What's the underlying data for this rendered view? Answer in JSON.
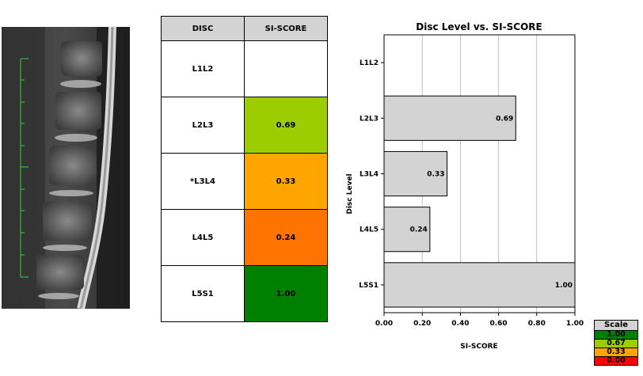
{
  "table": {
    "headers": [
      "DISC",
      "SI-SCORE"
    ],
    "rows": [
      {
        "disc": "L1L2",
        "score": "",
        "color": "#ffffff"
      },
      {
        "disc": "L2L3",
        "score": "0.69",
        "color": "#9ccd00"
      },
      {
        "disc": "*L3L4",
        "score": "0.33",
        "color": "#ffa500"
      },
      {
        "disc": "L4L5",
        "score": "0.24",
        "color": "#ff7300"
      },
      {
        "disc": "L5S1",
        "score": "1.00",
        "color": "#007f00"
      }
    ]
  },
  "chart_data": {
    "type": "bar",
    "orientation": "horizontal",
    "title": "Disc Level vs. SI-SCORE",
    "xlabel": "SI-SCORE",
    "ylabel": "Disc Level",
    "categories": [
      "L1L2",
      "L2L3",
      "L3L4",
      "L4L5",
      "L5S1"
    ],
    "values": [
      null,
      0.69,
      0.33,
      0.24,
      1.0
    ],
    "value_labels": [
      "",
      "0.69",
      "0.33",
      "0.24",
      "1.00"
    ],
    "xlim": [
      0,
      1.0
    ],
    "xticks": [
      "0.00",
      "0.20",
      "0.40",
      "0.60",
      "0.80",
      "1.00"
    ],
    "grid": "vertical",
    "bar_color": "#d3d3d3"
  },
  "scale": {
    "title": "Scale",
    "items": [
      {
        "label": "1.00",
        "color": "#007f00"
      },
      {
        "label": "0.67",
        "color": "#9ccd00"
      },
      {
        "label": "0.33",
        "color": "#ffa500"
      },
      {
        "label": "0.00",
        "color": "#ff0000"
      }
    ]
  }
}
